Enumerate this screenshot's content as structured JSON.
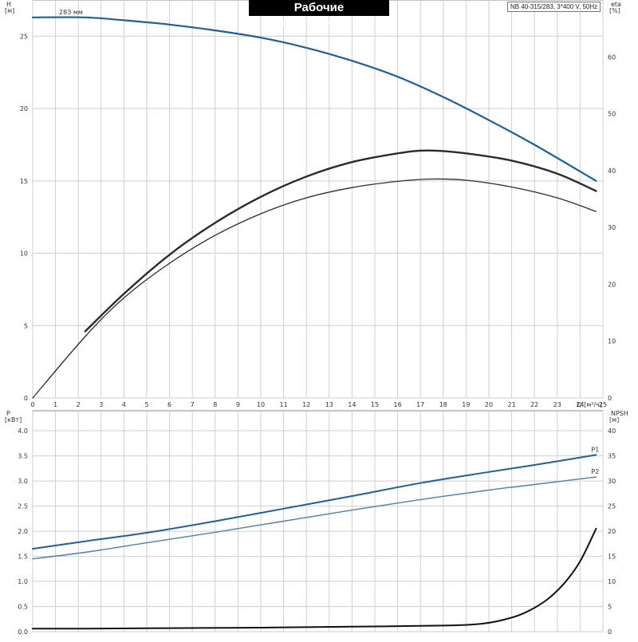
{
  "title": "Рабочие характеристики",
  "model": "NB 40-315/283, 3*400 V, 50Hz",
  "colors": {
    "head": "#1f5f9e",
    "efficiency": "#2b2b2b",
    "p1": "#1f5f9e",
    "p2": "#4f7fae",
    "npsh": "#111111",
    "grid": "#cfcfcf"
  },
  "chart_data": [
    {
      "type": "line",
      "panel": "top",
      "xlabel": "Q [м³/ч]",
      "ylabel_left": [
        "H",
        "[м]"
      ],
      "ylabel_right": [
        "eta",
        "[%]"
      ],
      "x_ticks": [
        0,
        1,
        2,
        3,
        4,
        5,
        6,
        7,
        8,
        9,
        10,
        11,
        12,
        13,
        14,
        15,
        16,
        17,
        18,
        19,
        20,
        21,
        22,
        23,
        24,
        25
      ],
      "xlim": [
        0,
        25
      ],
      "ylim_left": [
        0,
        27.5
      ],
      "ylim_right": [
        0,
        70
      ],
      "y_ticks_left": [
        0,
        5,
        10,
        15,
        20,
        25
      ],
      "y_ticks_right": [
        0,
        10,
        20,
        30,
        40,
        50,
        60
      ],
      "grid": true,
      "annotations": [
        {
          "text": "283 мм",
          "x": 2.2,
          "y": 26.3
        }
      ],
      "series": [
        {
          "axis": "left",
          "color_key": "head",
          "width": 2.2,
          "x": [
            0,
            2.3,
            4,
            6,
            8,
            10,
            12,
            14,
            16,
            18,
            20,
            22,
            24.7
          ],
          "y": [
            26.3,
            26.3,
            26.1,
            25.8,
            25.4,
            24.9,
            24.2,
            23.3,
            22.2,
            20.8,
            19.2,
            17.5,
            15.0
          ]
        },
        {
          "axis": "right",
          "color_key": "efficiency",
          "width": 1.3,
          "x": [
            0,
            2.3,
            4,
            6,
            8,
            10,
            12,
            14,
            16,
            17.5,
            19,
            21,
            23,
            24.7
          ],
          "y": [
            0,
            10.8,
            17.6,
            23.7,
            28.6,
            32.4,
            35.2,
            37.0,
            38.1,
            38.5,
            38.3,
            37.1,
            35.2,
            32.8
          ]
        },
        {
          "axis": "left",
          "color_key": "efficiency",
          "width": 2.4,
          "x": [
            2.3,
            4,
            6,
            8,
            10,
            12,
            14,
            16,
            17.3,
            19,
            21,
            23,
            24.7
          ],
          "y": [
            4.6,
            7.2,
            9.9,
            12.1,
            13.9,
            15.3,
            16.3,
            16.9,
            17.1,
            16.9,
            16.4,
            15.5,
            14.3
          ]
        }
      ]
    },
    {
      "type": "line",
      "panel": "bottom",
      "ylabel_left": [
        "P",
        "[кВт]"
      ],
      "ylabel_right": [
        "NPSH",
        "[м]"
      ],
      "xlim": [
        0,
        25
      ],
      "ylim_left": [
        0,
        4.4
      ],
      "ylim_right": [
        0,
        44
      ],
      "y_ticks_left": [
        0,
        0.5,
        1.0,
        1.5,
        2.0,
        2.5,
        3.0,
        3.5,
        4.0
      ],
      "y_tick_labels_left": [
        "0.0",
        "0.5",
        "1.0",
        "1.5",
        "2.0",
        "2.5",
        "3.0",
        "3.5",
        "4.0"
      ],
      "y_ticks_right": [
        0,
        5,
        10,
        15,
        20,
        25,
        30,
        35,
        40
      ],
      "grid": true,
      "series": [
        {
          "name": "P1",
          "axis": "left",
          "color_key": "p1",
          "width": 2,
          "x": [
            0,
            2.3,
            5,
            8,
            11,
            14,
            17,
            20,
            22,
            24.7
          ],
          "y": [
            1.65,
            1.8,
            1.97,
            2.2,
            2.45,
            2.7,
            2.96,
            3.18,
            3.32,
            3.52
          ]
        },
        {
          "name": "P2",
          "axis": "left",
          "color_key": "p2",
          "width": 1.4,
          "x": [
            0,
            2.3,
            5,
            8,
            11,
            14,
            17,
            20,
            22,
            24.7
          ],
          "y": [
            1.45,
            1.58,
            1.77,
            1.98,
            2.2,
            2.42,
            2.63,
            2.82,
            2.93,
            3.08
          ]
        },
        {
          "axis": "right",
          "color_key": "npsh",
          "width": 2,
          "x": [
            0,
            2.3,
            6,
            10,
            14,
            18,
            19.5,
            20.5,
            21.5,
            22.5,
            23.3,
            24,
            24.7
          ],
          "y": [
            0.6,
            0.6,
            0.7,
            0.8,
            1.0,
            1.2,
            1.5,
            2.2,
            3.6,
            6.2,
            9.6,
            14.0,
            20.5
          ]
        }
      ]
    }
  ]
}
